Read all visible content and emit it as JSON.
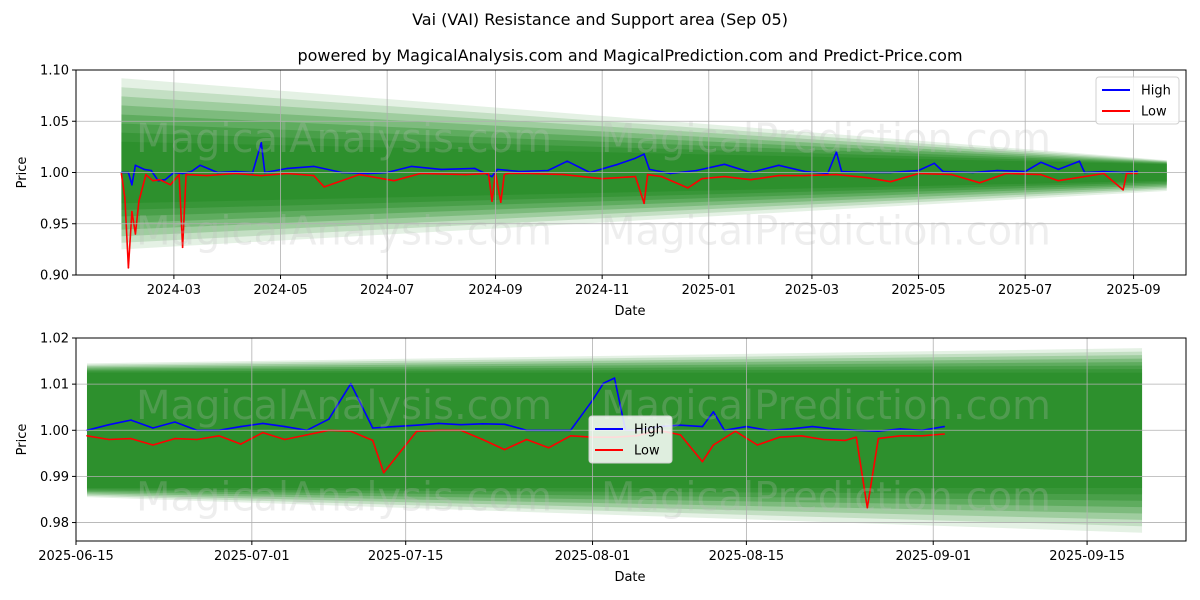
{
  "title": "Vai (VAI) Resistance and Support area (Sep 05)",
  "subtitle": "powered by MagicalAnalysis.com and MagicalPrediction.com and Predict-Price.com",
  "watermark_left": "MagicalAnalysis.com",
  "watermark_right": "MagicalPrediction.com",
  "colors": {
    "high": "#0000ff",
    "low": "#ff0000",
    "band": "#228b22",
    "grid": "#b0b0b0"
  },
  "chart_data": [
    {
      "type": "line",
      "xlabel": "Date",
      "ylabel": "Price",
      "ylim": [
        0.9,
        1.1
      ],
      "xlim": [
        "2024-01-05",
        "2025-10-01"
      ],
      "grid": true,
      "legend": "top-right",
      "x_ticks": [
        "2024-03",
        "2024-05",
        "2024-07",
        "2024-09",
        "2024-11",
        "2025-01",
        "2025-03",
        "2025-05",
        "2025-07",
        "2025-09"
      ],
      "y_ticks": [
        "0.90",
        "0.95",
        "1.00",
        "1.05",
        "1.10"
      ],
      "band": {
        "x": [
          "2024-01-31",
          "2025-09-20"
        ],
        "outer_upper": [
          1.092,
          1.012
        ],
        "outer_lower": [
          0.925,
          0.982
        ],
        "inner_upper": [
          1.03,
          1.008
        ],
        "inner_lower": [
          0.97,
          0.992
        ]
      },
      "series": [
        {
          "name": "High",
          "x": [
            "2024-01-31",
            "2024-02-04",
            "2024-02-06",
            "2024-02-08",
            "2024-02-13",
            "2024-02-17",
            "2024-02-21",
            "2024-02-25",
            "2024-03-01",
            "2024-03-06",
            "2024-03-11",
            "2024-03-16",
            "2024-03-26",
            "2024-04-05",
            "2024-04-15",
            "2024-04-20",
            "2024-04-22",
            "2024-05-05",
            "2024-05-20",
            "2024-06-05",
            "2024-06-20",
            "2024-07-01",
            "2024-07-15",
            "2024-08-01",
            "2024-08-20",
            "2024-08-30",
            "2024-09-02",
            "2024-09-15",
            "2024-10-01",
            "2024-10-12",
            "2024-10-25",
            "2024-11-10",
            "2024-11-20",
            "2024-11-25",
            "2024-11-28",
            "2024-12-10",
            "2024-12-25",
            "2025-01-10",
            "2025-01-25",
            "2025-02-10",
            "2025-02-25",
            "2025-03-10",
            "2025-03-15",
            "2025-03-18",
            "2025-04-01",
            "2025-04-15",
            "2025-05-01",
            "2025-05-10",
            "2025-05-15",
            "2025-06-01",
            "2025-06-15",
            "2025-07-01",
            "2025-07-10",
            "2025-07-20",
            "2025-08-01",
            "2025-08-04",
            "2025-08-15",
            "2025-08-26",
            "2025-09-03"
          ],
          "values": [
            1.0,
            1.0,
            0.988,
            1.007,
            1.003,
            1.002,
            0.992,
            0.993,
            1.0,
            0.999,
            1.001,
            1.007,
            1.0,
            1.001,
            1.0,
            1.029,
            1.0,
            1.004,
            1.006,
            1.0,
            0.999,
            1.0,
            1.006,
            1.003,
            1.004,
            0.996,
            1.003,
            1.001,
            1.002,
            1.011,
            1.0,
            1.008,
            1.014,
            1.018,
            1.003,
            0.999,
            1.002,
            1.008,
            1.0,
            1.007,
            1.001,
            0.999,
            1.02,
            1.001,
            1.0,
            1.0,
            1.002,
            1.009,
            1.001,
            1.0,
            1.002,
            1.001,
            1.01,
            1.003,
            1.011,
            1.0,
            1.001,
            1.0,
            1.001
          ]
        },
        {
          "name": "Low",
          "x": [
            "2024-01-31",
            "2024-02-02",
            "2024-02-04",
            "2024-02-06",
            "2024-02-08",
            "2024-02-10",
            "2024-02-14",
            "2024-02-18",
            "2024-02-22",
            "2024-02-28",
            "2024-03-04",
            "2024-03-06",
            "2024-03-08",
            "2024-03-20",
            "2024-04-05",
            "2024-04-20",
            "2024-05-05",
            "2024-05-20",
            "2024-05-26",
            "2024-06-15",
            "2024-07-05",
            "2024-07-20",
            "2024-08-15",
            "2024-08-28",
            "2024-08-30",
            "2024-09-01",
            "2024-09-04",
            "2024-09-06",
            "2024-09-08",
            "2024-09-20",
            "2024-10-10",
            "2024-11-01",
            "2024-11-20",
            "2024-11-25",
            "2024-11-27",
            "2024-12-05",
            "2024-12-20",
            "2024-12-28",
            "2025-01-10",
            "2025-01-25",
            "2025-02-10",
            "2025-02-25",
            "2025-03-15",
            "2025-04-01",
            "2025-04-15",
            "2025-05-01",
            "2025-05-20",
            "2025-06-05",
            "2025-06-20",
            "2025-07-10",
            "2025-07-20",
            "2025-08-15",
            "2025-08-26",
            "2025-08-28",
            "2025-09-03"
          ],
          "values": [
            0.999,
            0.975,
            0.907,
            0.962,
            0.94,
            0.972,
            0.998,
            0.992,
            0.993,
            0.988,
            0.998,
            0.927,
            0.998,
            0.997,
            0.999,
            0.997,
            0.999,
            0.997,
            0.986,
            0.998,
            0.992,
            0.999,
            0.998,
            0.999,
            0.972,
            0.999,
            0.971,
            0.998,
            0.999,
            0.999,
            0.998,
            0.994,
            0.996,
            0.97,
            0.998,
            0.996,
            0.985,
            0.994,
            0.996,
            0.993,
            0.997,
            0.997,
            0.998,
            0.995,
            0.991,
            0.999,
            0.998,
            0.99,
            0.999,
            0.998,
            0.992,
            0.999,
            0.983,
            0.999,
            0.999
          ]
        }
      ]
    },
    {
      "type": "line",
      "xlabel": "Date",
      "ylabel": "Price",
      "ylim": [
        0.976,
        1.02
      ],
      "xlim": [
        "2025-06-15",
        "2025-09-24"
      ],
      "grid": true,
      "legend": "center",
      "x_ticks": [
        "2025-06-15",
        "2025-07-01",
        "2025-07-15",
        "2025-08-01",
        "2025-08-15",
        "2025-09-01",
        "2025-09-15"
      ],
      "y_ticks": [
        "0.98",
        "0.99",
        "1.00",
        "1.01",
        "1.02"
      ],
      "band": {
        "x": [
          "2025-06-16",
          "2025-09-20"
        ],
        "outer_upper": [
          1.0145,
          1.0178
        ],
        "outer_lower": [
          0.9855,
          0.9778
        ],
        "inner_upper": [
          1.0125,
          1.0125
        ],
        "inner_lower": [
          0.9875,
          0.9875
        ]
      },
      "series": [
        {
          "name": "High",
          "x": [
            "2025-06-16",
            "2025-06-18",
            "2025-06-20",
            "2025-06-22",
            "2025-06-24",
            "2025-06-26",
            "2025-06-28",
            "2025-06-30",
            "2025-07-02",
            "2025-07-04",
            "2025-07-06",
            "2025-07-08",
            "2025-07-10",
            "2025-07-12",
            "2025-07-14",
            "2025-07-16",
            "2025-07-18",
            "2025-07-20",
            "2025-07-22",
            "2025-07-24",
            "2025-07-26",
            "2025-07-28",
            "2025-07-30",
            "2025-08-01",
            "2025-08-02",
            "2025-08-03",
            "2025-08-04",
            "2025-08-05",
            "2025-08-07",
            "2025-08-09",
            "2025-08-11",
            "2025-08-12",
            "2025-08-13",
            "2025-08-15",
            "2025-08-17",
            "2025-08-19",
            "2025-08-21",
            "2025-08-23",
            "2025-08-25",
            "2025-08-27",
            "2025-08-29",
            "2025-08-31",
            "2025-09-02"
          ],
          "values": [
            1.0,
            1.0012,
            1.0022,
            1.0005,
            1.0018,
            1.0,
            1.0,
            1.0008,
            1.0015,
            1.0008,
            1.0,
            1.0024,
            1.0101,
            1.0005,
            1.0008,
            1.0011,
            1.0015,
            1.0012,
            1.0014,
            1.0013,
            1.0,
            1.0,
            1.0,
            1.0065,
            1.0102,
            1.0113,
            1.0,
            1.0,
            1.0008,
            1.0011,
            1.0008,
            1.004,
            1.0,
            1.0008,
            1.0,
            1.0003,
            1.0008,
            1.0003,
            1.0,
            0.9998,
            1.0003,
            1.0,
            1.0008
          ]
        },
        {
          "name": "Low",
          "x": [
            "2025-06-16",
            "2025-06-18",
            "2025-06-20",
            "2025-06-22",
            "2025-06-24",
            "2025-06-26",
            "2025-06-28",
            "2025-06-30",
            "2025-07-02",
            "2025-07-04",
            "2025-07-06",
            "2025-07-08",
            "2025-07-10",
            "2025-07-12",
            "2025-07-13",
            "2025-07-14",
            "2025-07-16",
            "2025-07-18",
            "2025-07-20",
            "2025-07-22",
            "2025-07-24",
            "2025-07-26",
            "2025-07-28",
            "2025-07-30",
            "2025-08-01",
            "2025-08-03",
            "2025-08-05",
            "2025-08-07",
            "2025-08-09",
            "2025-08-11",
            "2025-08-12",
            "2025-08-14",
            "2025-08-16",
            "2025-08-18",
            "2025-08-20",
            "2025-08-22",
            "2025-08-24",
            "2025-08-25",
            "2025-08-26",
            "2025-08-27",
            "2025-08-29",
            "2025-08-31",
            "2025-09-02"
          ],
          "values": [
            0.9988,
            0.998,
            0.9982,
            0.9968,
            0.9982,
            0.998,
            0.9988,
            0.997,
            0.9995,
            0.998,
            0.999,
            1.0,
            0.9998,
            0.9978,
            0.9908,
            0.9938,
            0.9998,
            1.0,
            1.0,
            0.998,
            0.9958,
            0.998,
            0.9962,
            0.9988,
            0.9985,
            0.9985,
            0.9988,
            1.0,
            0.999,
            0.9932,
            0.9968,
            0.9998,
            0.9968,
            0.9985,
            0.9988,
            0.998,
            0.9978,
            0.9985,
            0.9832,
            0.9982,
            0.9988,
            0.9988,
            0.9992
          ]
        }
      ]
    }
  ]
}
